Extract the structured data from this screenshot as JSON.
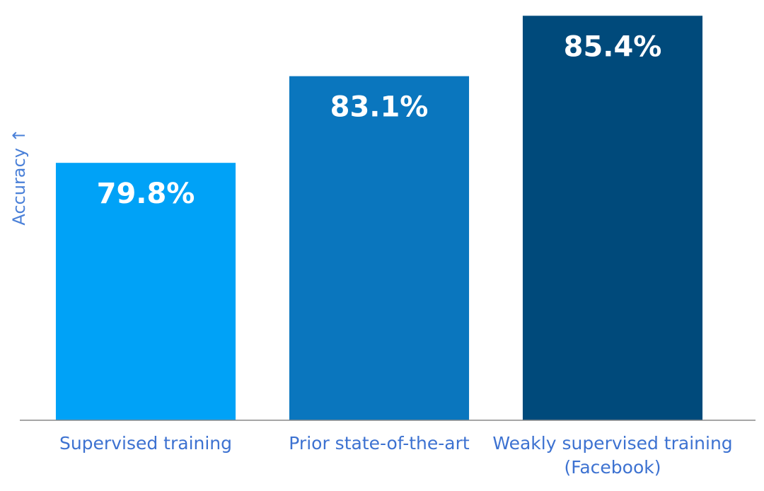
{
  "chart_data": {
    "type": "bar",
    "y_label": "Accuracy ↑",
    "categories": [
      "Supervised training",
      "Prior state-of-the-art",
      "Weakly supervised training (Facebook)"
    ],
    "values": [
      79.8,
      83.1,
      85.4
    ],
    "value_labels": [
      "79.8%",
      "83.1%",
      "85.4%"
    ],
    "colors": [
      "#00a2f7",
      "#0a76be",
      "#004a7b"
    ],
    "ylim": [
      70,
      86
    ]
  }
}
